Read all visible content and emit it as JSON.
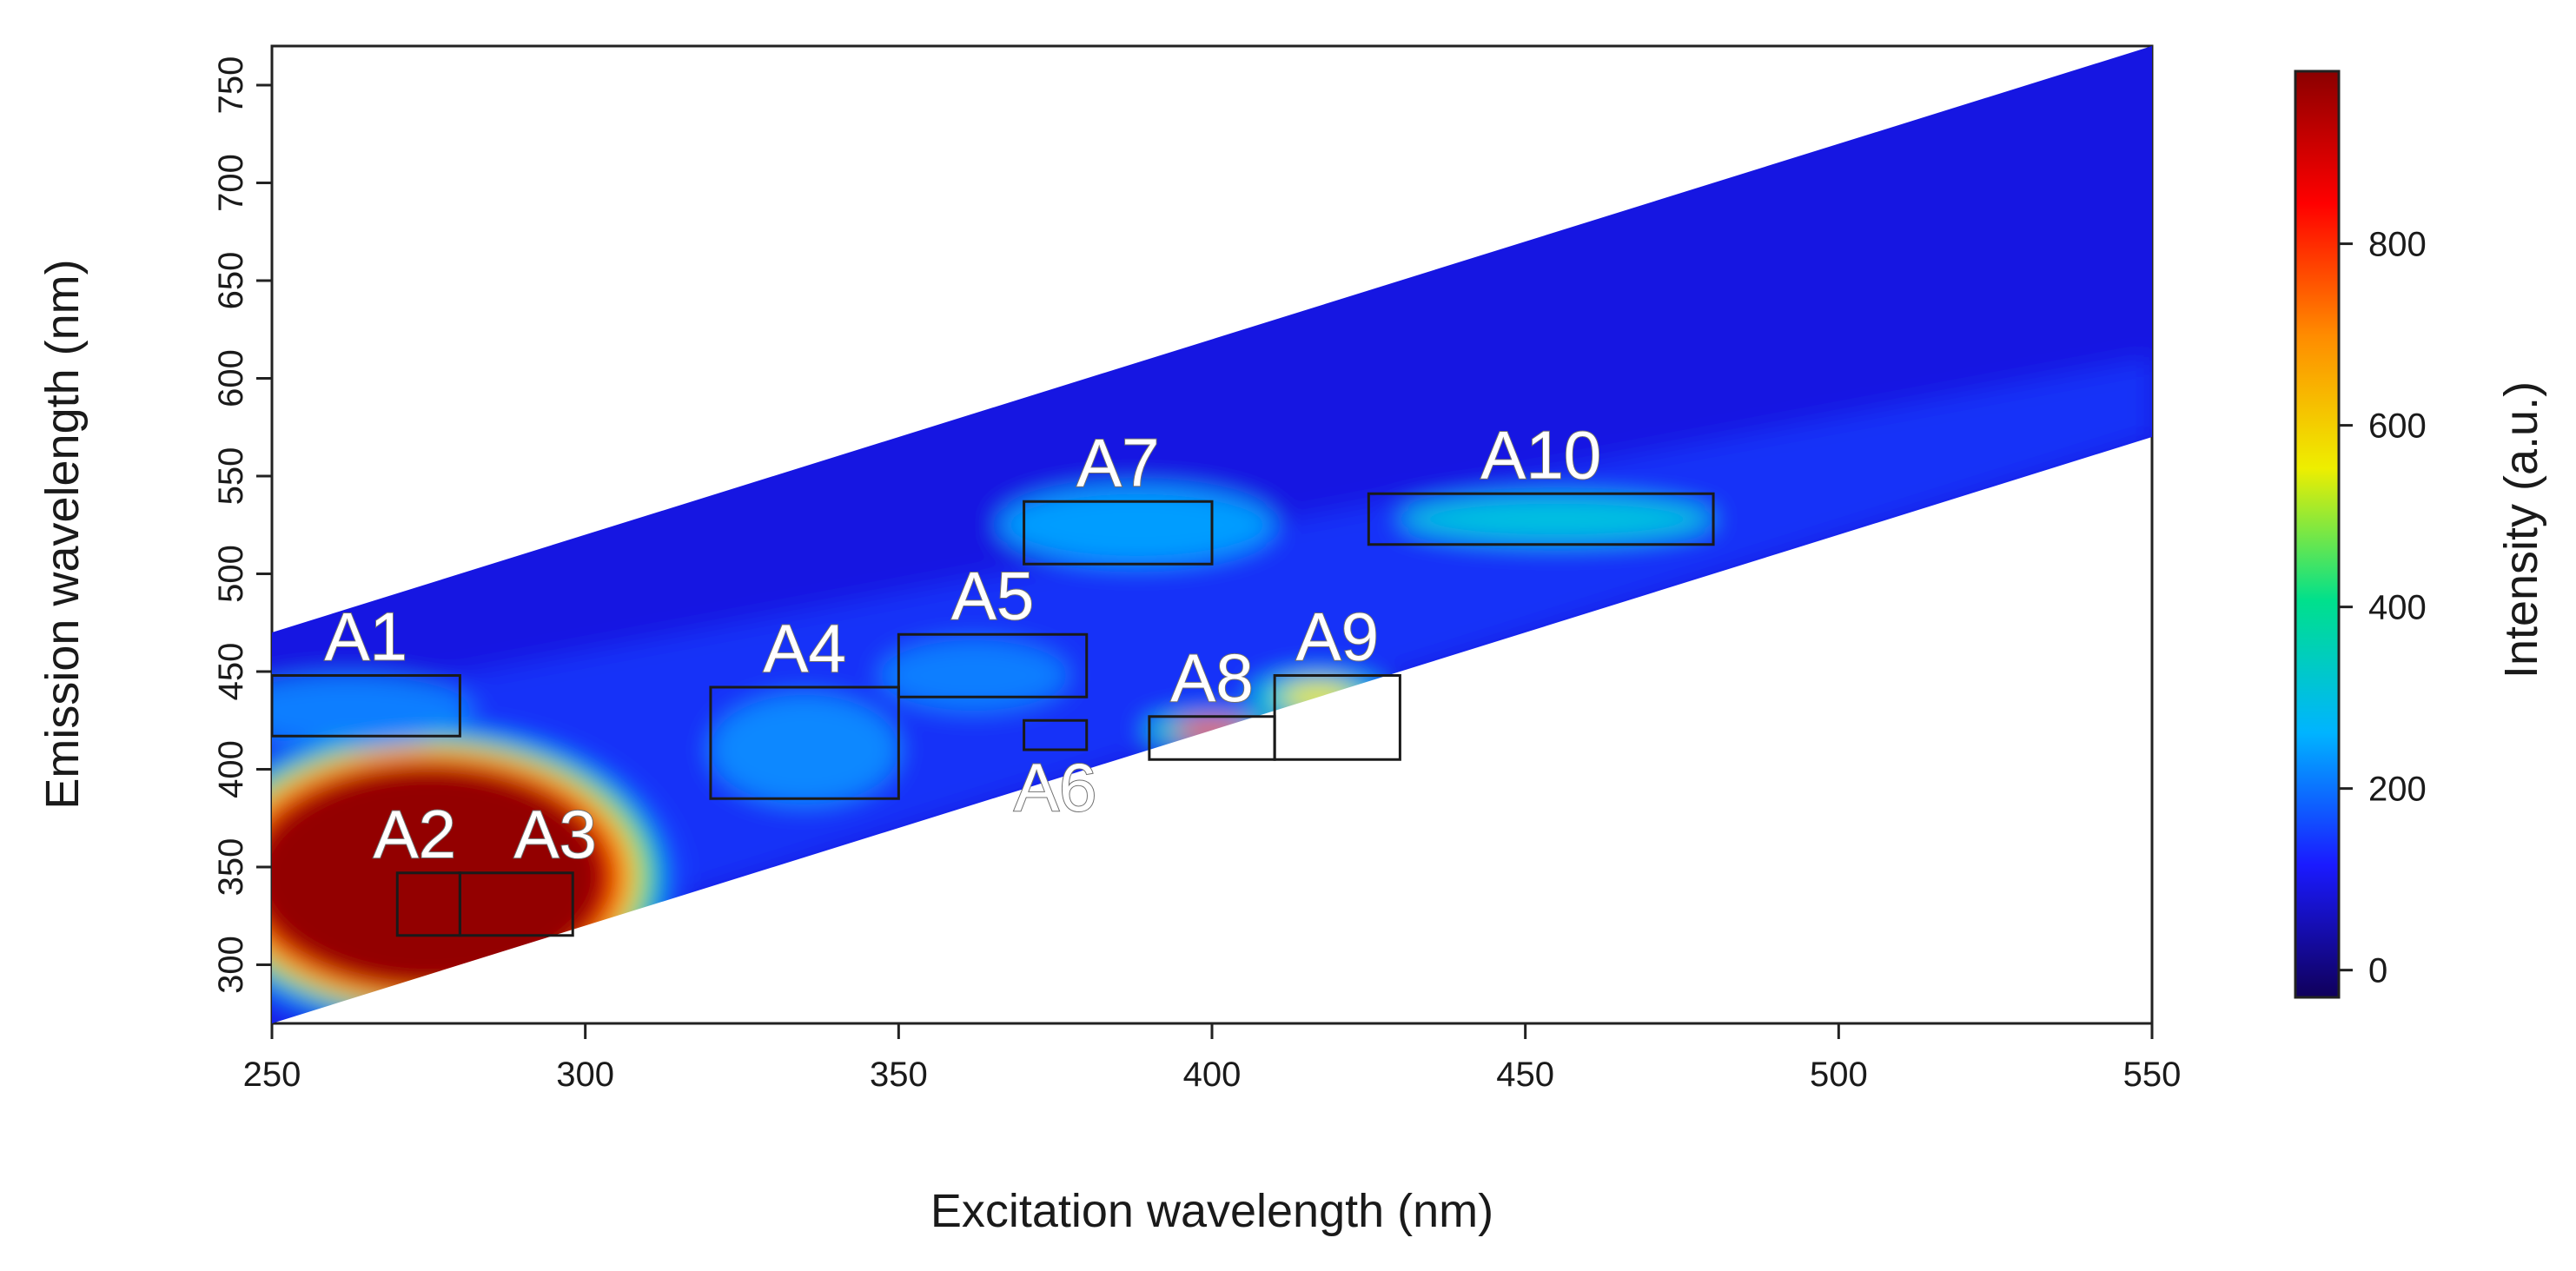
{
  "chart_data": {
    "type": "heatmap",
    "subtype": "excitation-emission matrix (filled contour)",
    "xlabel": "Excitation wavelength (nm)",
    "ylabel": "Emission wavelength (nm)",
    "xlim": [
      250,
      550
    ],
    "ylim": [
      270,
      770
    ],
    "xticks": [
      250,
      300,
      350,
      400,
      450,
      500,
      550
    ],
    "yticks": [
      300,
      350,
      400,
      450,
      500,
      550,
      600,
      650,
      700,
      750
    ],
    "data_band": {
      "lower_emission": [
        [
          250,
          270
        ],
        [
          550,
          570
        ]
      ],
      "upper_emission": [
        [
          250,
          470
        ],
        [
          550,
          770
        ]
      ]
    },
    "intensity_fields": [
      {
        "name": "background",
        "level": 90
      },
      {
        "name": "A2-A3 peak",
        "x": 275,
        "y": 345,
        "rx": 30,
        "ry": 60,
        "level": 980
      },
      {
        "name": "A1 band",
        "x": 262,
        "y": 430,
        "rx": 20,
        "ry": 18,
        "level": 210
      },
      {
        "name": "A4 region",
        "x": 335,
        "y": 410,
        "rx": 15,
        "ry": 28,
        "level": 220
      },
      {
        "name": "A5 region",
        "x": 362,
        "y": 448,
        "rx": 15,
        "ry": 18,
        "level": 210
      },
      {
        "name": "A7 region",
        "x": 388,
        "y": 525,
        "rx": 22,
        "ry": 20,
        "level": 240
      },
      {
        "name": "A8 peak",
        "x": 400,
        "y": 420,
        "rx": 6,
        "ry": 5,
        "level": 820
      },
      {
        "name": "A9 peak",
        "x": 417,
        "y": 437,
        "rx": 6,
        "ry": 7,
        "level": 560
      },
      {
        "name": "A10 region",
        "x": 455,
        "y": 528,
        "rx": 25,
        "ry": 12,
        "level": 300
      }
    ],
    "regions": [
      {
        "label": "A1",
        "x": [
          250,
          280
        ],
        "y": [
          417,
          448
        ]
      },
      {
        "label": "A2",
        "x": [
          270,
          280
        ],
        "y": [
          315,
          347
        ]
      },
      {
        "label": "A3",
        "x": [
          280,
          298
        ],
        "y": [
          315,
          347
        ]
      },
      {
        "label": "A4",
        "x": [
          320,
          350
        ],
        "y": [
          385,
          442
        ]
      },
      {
        "label": "A5",
        "x": [
          350,
          380
        ],
        "y": [
          437,
          469
        ]
      },
      {
        "label": "A6",
        "x": [
          370,
          380
        ],
        "y": [
          410,
          425
        ]
      },
      {
        "label": "A7",
        "x": [
          370,
          400
        ],
        "y": [
          505,
          537
        ]
      },
      {
        "label": "A8",
        "x": [
          390,
          410
        ],
        "y": [
          405,
          427
        ]
      },
      {
        "label": "A9",
        "x": [
          410,
          430
        ],
        "y": [
          405,
          448
        ]
      },
      {
        "label": "A10",
        "x": [
          425,
          480
        ],
        "y": [
          515,
          541
        ]
      }
    ],
    "colorbar": {
      "title": "Intensity (a.u.)",
      "range": [
        -30,
        990
      ],
      "ticks": [
        0,
        200,
        400,
        600,
        800
      ],
      "colormap": [
        "#10005a",
        "#1a1aff",
        "#00b4ff",
        "#00e08c",
        "#eeee00",
        "#ff8c00",
        "#ff0000",
        "#8b0000"
      ]
    }
  }
}
